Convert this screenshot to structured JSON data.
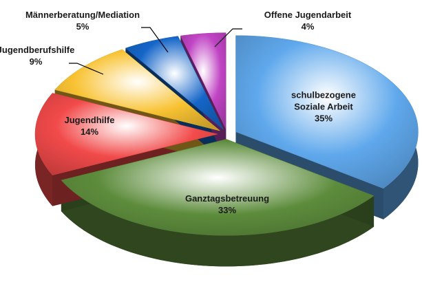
{
  "chart_data": {
    "type": "pie",
    "categories": [
      "schulbezogene Soziale Arbeit",
      "Ganztagsbetreuung",
      "Jugendhilfe",
      "Jugendberufshilfe",
      "Männerberatung/Mediation",
      "Offene Jugendarbeit"
    ],
    "values": [
      35,
      33,
      14,
      9,
      5,
      4
    ],
    "value_labels": [
      "35%",
      "33%",
      "14%",
      "9%",
      "5%",
      "4%"
    ],
    "colors": [
      "#5fa8ec",
      "#5d8c3c",
      "#f24a4a",
      "#f8c232",
      "#1566c8",
      "#c044c4"
    ]
  }
}
